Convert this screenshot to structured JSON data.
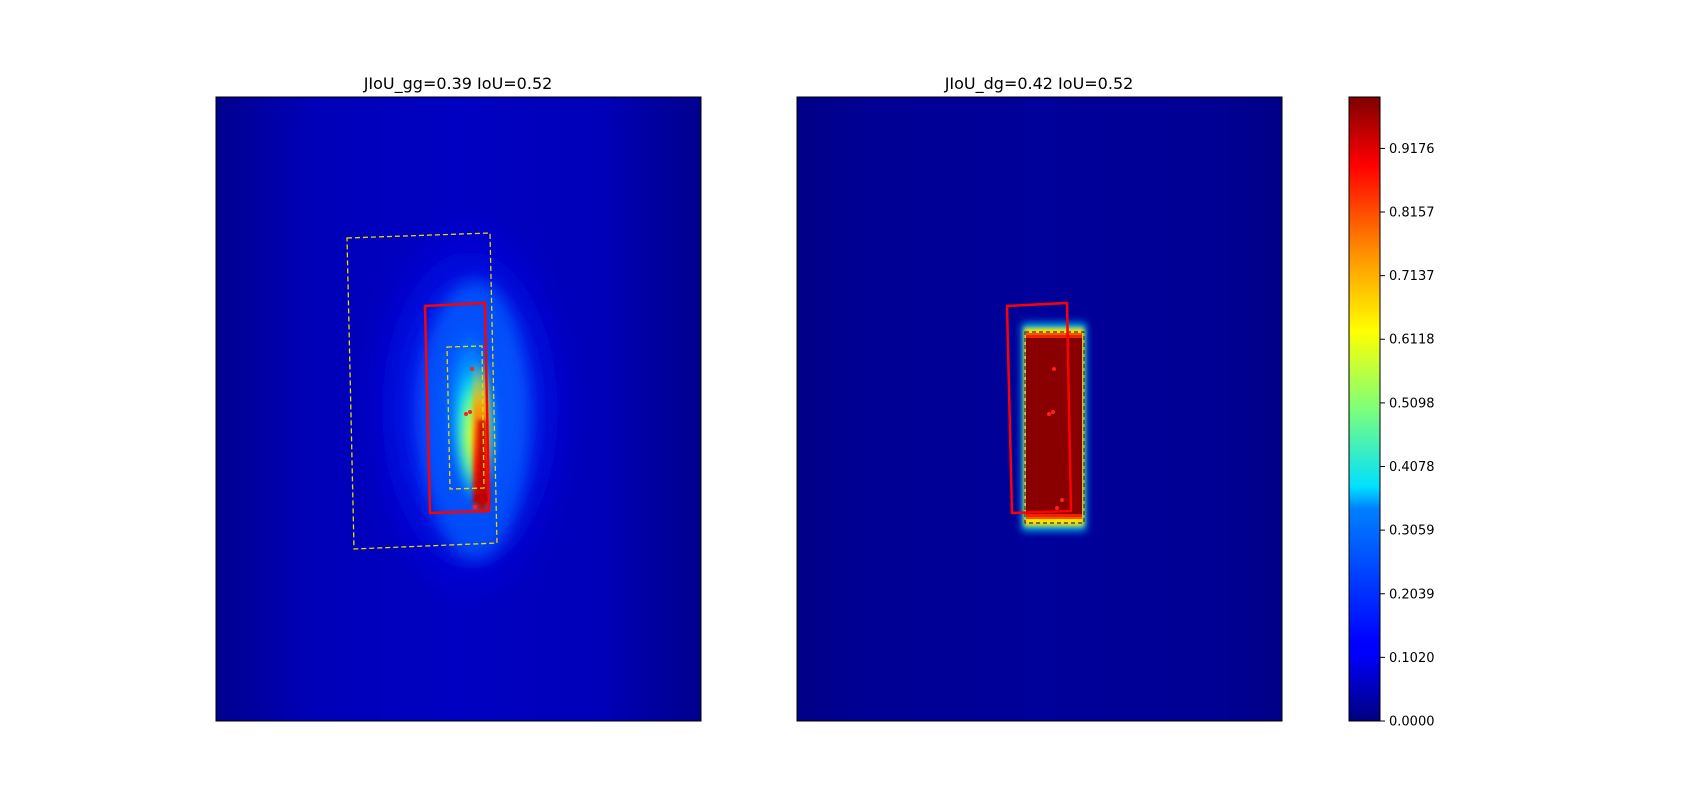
{
  "chart_data": [
    {
      "type": "heatmap",
      "title": "JIoU_gg=0.39 IoU=0.52",
      "colormap": "jet",
      "value_range": [
        0,
        1
      ],
      "axes_visible": false,
      "overlays": [
        {
          "kind": "rotated-box",
          "color": "#ff0000",
          "style": "solid"
        },
        {
          "kind": "rotated-box",
          "color": "#e8d800",
          "style": "dashed",
          "note_visible": false
        },
        {
          "kind": "rotated-box",
          "color": "#e8d800",
          "style": "dashed"
        },
        {
          "kind": "points",
          "color": "#ff0000"
        }
      ]
    },
    {
      "type": "heatmap",
      "title": "JIoU_dg=0.42 IoU=0.52",
      "colormap": "jet",
      "value_range": [
        0,
        1
      ],
      "axes_visible": false,
      "overlays": [
        {
          "kind": "rotated-box",
          "color": "#ff0000",
          "style": "solid"
        },
        {
          "kind": "rotated-box",
          "color": "#333333",
          "style": "dashed"
        },
        {
          "kind": "points",
          "color": "#ff0000"
        }
      ]
    }
  ],
  "colorbar": {
    "colormap": "jet",
    "range": [
      0,
      1
    ],
    "ticks": [
      "0.0000",
      "0.1020",
      "0.2039",
      "0.3059",
      "0.4078",
      "0.5098",
      "0.6118",
      "0.7137",
      "0.8157",
      "0.9176"
    ],
    "tick_values": [
      0.0,
      0.102,
      0.2039,
      0.3059,
      0.4078,
      0.5098,
      0.6118,
      0.7137,
      0.8157,
      0.9176
    ]
  }
}
